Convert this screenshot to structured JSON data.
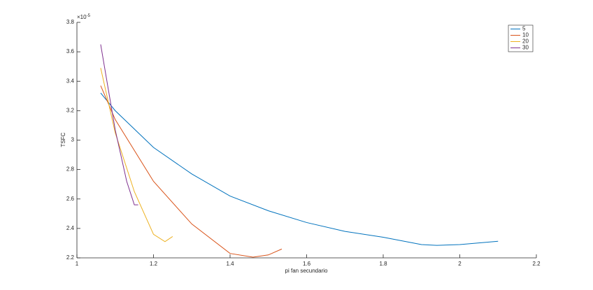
{
  "chart_data": {
    "type": "line",
    "x_label": "pi fan secundario",
    "y_label": "TSFC",
    "y_scale_label": {
      "base": "×10",
      "exponent": "-5"
    },
    "xlim": [
      1,
      2.2
    ],
    "xticks": [
      1,
      1.2,
      1.4,
      1.6,
      1.8,
      2,
      2.2
    ],
    "ylim": [
      2.2,
      3.8
    ],
    "yticks": [
      2.2,
      2.4,
      2.6,
      2.8,
      3,
      3.2,
      3.4,
      3.6,
      3.8
    ],
    "grid": false,
    "legend": "upper-right",
    "series": [
      {
        "name": "5",
        "color": "#0072bd",
        "x": [
          1.062,
          1.1,
          1.2,
          1.3,
          1.4,
          1.5,
          1.6,
          1.7,
          1.8,
          1.9,
          1.94,
          2.0,
          2.1
        ],
        "values": [
          3.32,
          3.2,
          2.95,
          2.77,
          2.62,
          2.52,
          2.44,
          2.38,
          2.34,
          2.29,
          2.285,
          2.29,
          2.313
        ]
      },
      {
        "name": "10",
        "color": "#d95319",
        "x": [
          1.062,
          1.1,
          1.2,
          1.3,
          1.4,
          1.46,
          1.5,
          1.535
        ],
        "values": [
          3.37,
          3.14,
          2.72,
          2.43,
          2.23,
          2.205,
          2.22,
          2.26
        ]
      },
      {
        "name": "20",
        "color": "#edb120",
        "x": [
          1.062,
          1.1,
          1.15,
          1.2,
          1.23,
          1.25
        ],
        "values": [
          3.49,
          3.05,
          2.65,
          2.36,
          2.31,
          2.345
        ]
      },
      {
        "name": "30",
        "color": "#7e2f8e",
        "x": [
          1.062,
          1.1,
          1.13,
          1.15,
          1.16
        ],
        "values": [
          3.65,
          3.07,
          2.72,
          2.56,
          2.56
        ]
      }
    ]
  }
}
